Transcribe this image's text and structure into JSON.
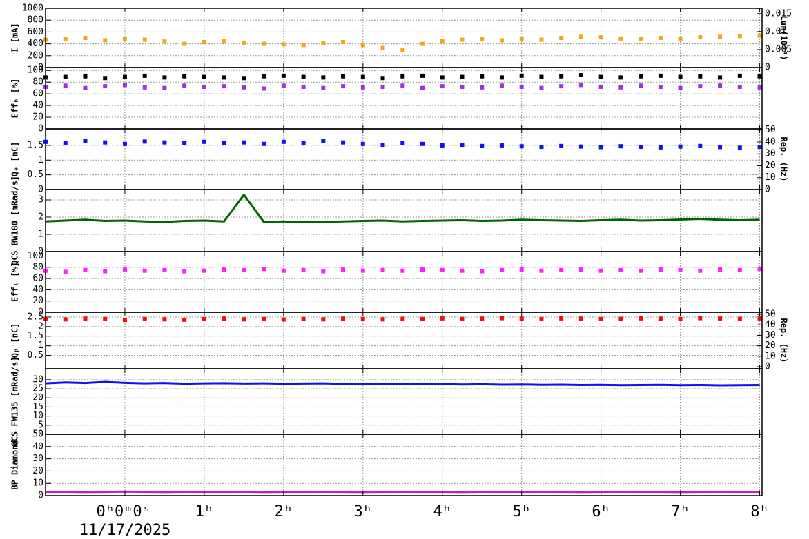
{
  "chart_data": [
    {
      "type": "scatter",
      "ylabel": "I [mA]",
      "ylim": [
        0,
        1000
      ],
      "yticks": [
        0,
        200,
        400,
        600,
        800,
        1000
      ],
      "y2label": "Lum(10³⁴)",
      "y2lim": [
        0,
        0.0165
      ],
      "y2ticks": [
        0,
        0.005,
        0.01,
        0.015
      ],
      "grid": true,
      "x": [
        -1,
        -0.75,
        -0.5,
        -0.25,
        0,
        0.25,
        0.5,
        0.75,
        1,
        1.25,
        1.5,
        1.75,
        2,
        2.25,
        2.5,
        2.75,
        3,
        3.25,
        3.5,
        3.75,
        4,
        4.25,
        4.5,
        4.75,
        5,
        5.25,
        5.5,
        5.75,
        6,
        6.25,
        6.5,
        6.75,
        7,
        7.25,
        7.5,
        7.75,
        8
      ],
      "series": [
        {
          "color": "#f0a818",
          "values": [
            470,
            480,
            500,
            460,
            480,
            470,
            440,
            400,
            430,
            450,
            420,
            400,
            390,
            380,
            410,
            430,
            380,
            330,
            290,
            400,
            450,
            470,
            480,
            460,
            480,
            470,
            500,
            520,
            510,
            490,
            480,
            500,
            490,
            510,
            520,
            530,
            540
          ]
        }
      ]
    },
    {
      "type": "scatter",
      "ylabel": "Effₕ [%]",
      "ylim": [
        0,
        105
      ],
      "yticks": [
        0,
        20,
        40,
        60,
        80,
        100
      ],
      "grid": true,
      "x": [
        -1,
        -0.75,
        -0.5,
        -0.25,
        0,
        0.25,
        0.5,
        0.75,
        1,
        1.25,
        1.5,
        1.75,
        2,
        2.25,
        2.5,
        2.75,
        3,
        3.25,
        3.5,
        3.75,
        4,
        4.25,
        4.5,
        4.75,
        5,
        5.25,
        5.5,
        5.75,
        6,
        6.25,
        6.5,
        6.75,
        7,
        7.25,
        7.5,
        7.75,
        8
      ],
      "series": [
        {
          "color": "#000000",
          "values": [
            88,
            89,
            90,
            87,
            89,
            91,
            88,
            90,
            89,
            88,
            87,
            90,
            91,
            89,
            88,
            90,
            89,
            87,
            90,
            91,
            88,
            89,
            90,
            88,
            91,
            89,
            90,
            92,
            89,
            88,
            90,
            91,
            89,
            90,
            88,
            91,
            90
          ]
        },
        {
          "color": "#a030e0",
          "values": [
            72,
            74,
            70,
            73,
            75,
            71,
            70,
            74,
            72,
            73,
            71,
            69,
            74,
            72,
            70,
            73,
            71,
            72,
            74,
            70,
            73,
            72,
            71,
            74,
            72,
            70,
            73,
            75,
            72,
            71,
            74,
            72,
            70,
            73,
            74,
            72,
            71
          ]
        }
      ]
    },
    {
      "type": "scatter",
      "ylabel": "Qₑ [nC]",
      "ylim": [
        0,
        2.06
      ],
      "yticks": [
        0,
        0.5,
        1,
        1.5
      ],
      "y2label": "Rep. (Hz)",
      "y2lim": [
        0,
        51
      ],
      "y2ticks": [
        0,
        10,
        20,
        30,
        40,
        50
      ],
      "grid": true,
      "x": [
        -1,
        -0.75,
        -0.5,
        -0.25,
        0,
        0.25,
        0.5,
        0.75,
        1,
        1.25,
        1.5,
        1.75,
        2,
        2.25,
        2.5,
        2.75,
        3,
        3.25,
        3.5,
        3.75,
        4,
        4.25,
        4.5,
        4.75,
        5,
        5.25,
        5.5,
        5.75,
        6,
        6.25,
        6.5,
        6.75,
        7,
        7.25,
        7.5,
        7.75,
        8
      ],
      "series": [
        {
          "color": "#1010f0",
          "values": [
            1.62,
            1.58,
            1.65,
            1.6,
            1.55,
            1.63,
            1.6,
            1.58,
            1.62,
            1.57,
            1.6,
            1.55,
            1.62,
            1.58,
            1.64,
            1.6,
            1.55,
            1.52,
            1.58,
            1.55,
            1.5,
            1.52,
            1.48,
            1.5,
            1.47,
            1.45,
            1.48,
            1.46,
            1.44,
            1.47,
            1.45,
            1.43,
            1.46,
            1.48,
            1.44,
            1.42,
            1.45
          ]
        }
      ]
    },
    {
      "type": "line",
      "ylabel": "QCS BW180 [mRad/s]",
      "ylim": [
        0,
        3.6
      ],
      "yticks": [
        0,
        1,
        2,
        3
      ],
      "grid": true,
      "x": [
        -1,
        -0.75,
        -0.5,
        -0.25,
        0,
        0.25,
        0.5,
        0.75,
        1,
        1.25,
        1.5,
        1.75,
        2,
        2.25,
        2.5,
        2.75,
        3,
        3.25,
        3.5,
        3.75,
        4,
        4.25,
        4.5,
        4.75,
        5,
        5.25,
        5.5,
        5.75,
        6,
        6.25,
        6.5,
        6.75,
        7,
        7.25,
        7.5,
        7.75,
        8
      ],
      "series": [
        {
          "color": "#006400",
          "values": [
            1.75,
            1.8,
            1.85,
            1.78,
            1.8,
            1.75,
            1.72,
            1.78,
            1.8,
            1.75,
            3.3,
            1.72,
            1.75,
            1.7,
            1.72,
            1.75,
            1.78,
            1.8,
            1.75,
            1.78,
            1.8,
            1.82,
            1.78,
            1.8,
            1.85,
            1.82,
            1.8,
            1.78,
            1.82,
            1.85,
            1.8,
            1.82,
            1.86,
            1.9,
            1.85,
            1.82,
            1.85
          ]
        }
      ]
    },
    {
      "type": "scatter",
      "ylabel": "Effₗ [%]",
      "ylim": [
        0,
        108
      ],
      "yticks": [
        0,
        20,
        40,
        60,
        80,
        100
      ],
      "grid": true,
      "x": [
        -1,
        -0.75,
        -0.5,
        -0.25,
        0,
        0.25,
        0.5,
        0.75,
        1,
        1.25,
        1.5,
        1.75,
        2,
        2.25,
        2.5,
        2.75,
        3,
        3.25,
        3.5,
        3.75,
        4,
        4.25,
        4.5,
        4.75,
        5,
        5.25,
        5.5,
        5.75,
        6,
        6.25,
        6.5,
        6.75,
        7,
        7.25,
        7.5,
        7.75,
        8
      ],
      "series": [
        {
          "color": "#ff20ff",
          "values": [
            74,
            72,
            75,
            73,
            76,
            74,
            75,
            73,
            74,
            76,
            75,
            77,
            74,
            75,
            73,
            76,
            74,
            75,
            74,
            76,
            75,
            74,
            73,
            75,
            76,
            74,
            75,
            76,
            74,
            75,
            74,
            76,
            75,
            74,
            76,
            75,
            77
          ]
        }
      ]
    },
    {
      "type": "scatter",
      "ylabel": "Qₚ [nC]",
      "ylim": [
        -0.2,
        2.75
      ],
      "yticks": [
        0.5,
        1,
        1.5,
        2,
        2.5
      ],
      "y2label": "Rep. (Hz)",
      "y2lim": [
        -2,
        52
      ],
      "y2ticks": [
        0,
        10,
        20,
        30,
        40,
        50
      ],
      "grid": true,
      "x": [
        -1,
        -0.75,
        -0.5,
        -0.25,
        0,
        0.25,
        0.5,
        0.75,
        1,
        1.25,
        1.5,
        1.75,
        2,
        2.25,
        2.5,
        2.75,
        3,
        3.25,
        3.5,
        3.75,
        4,
        4.25,
        4.5,
        4.75,
        5,
        5.25,
        5.5,
        5.75,
        6,
        6.25,
        6.5,
        6.75,
        7,
        7.25,
        7.5,
        7.75,
        8
      ],
      "series": [
        {
          "color": "#ee1010",
          "values": [
            2.4,
            2.38,
            2.42,
            2.4,
            2.35,
            2.4,
            2.38,
            2.36,
            2.4,
            2.42,
            2.38,
            2.4,
            2.37,
            2.4,
            2.38,
            2.42,
            2.4,
            2.38,
            2.41,
            2.4,
            2.43,
            2.4,
            2.42,
            2.44,
            2.42,
            2.4,
            2.43,
            2.42,
            2.4,
            2.41,
            2.43,
            2.42,
            2.4,
            2.44,
            2.42,
            2.41,
            2.43
          ]
        }
      ]
    },
    {
      "type": "line",
      "ylabel": "QCS FW135 [mRad/s]",
      "ylim": [
        0,
        36
      ],
      "yticks": [
        0,
        5,
        10,
        15,
        20,
        25,
        30
      ],
      "grid": true,
      "x": [
        -1,
        -0.75,
        -0.5,
        -0.25,
        0,
        0.25,
        0.5,
        0.75,
        1,
        1.25,
        1.5,
        1.75,
        2,
        2.25,
        2.5,
        2.75,
        3,
        3.25,
        3.5,
        3.75,
        4,
        4.25,
        4.5,
        4.75,
        5,
        5.25,
        5.5,
        5.75,
        6,
        6.25,
        6.5,
        6.75,
        7,
        7.25,
        7.5,
        7.75,
        8
      ],
      "series": [
        {
          "color": "#1010f0",
          "values": [
            28,
            28.5,
            28.2,
            28.8,
            28.3,
            28,
            28.2,
            27.8,
            28,
            28.1,
            27.9,
            28,
            27.8,
            27.9,
            28,
            27.7,
            27.8,
            27.6,
            27.8,
            27.5,
            27.6,
            27.4,
            27.5,
            27.3,
            27.4,
            27.2,
            27.3,
            27.1,
            27.2,
            27,
            27.1,
            27.2,
            27,
            27.1,
            26.9,
            27,
            27.1
          ]
        }
      ]
    },
    {
      "type": "line",
      "ylabel": "BP Diamond",
      "ylim": [
        0,
        50
      ],
      "yticks": [
        0,
        10,
        20,
        30,
        40,
        50
      ],
      "grid": true,
      "x": [
        -1,
        -0.75,
        -0.5,
        -0.25,
        0,
        0.25,
        0.5,
        0.75,
        1,
        1.25,
        1.5,
        1.75,
        2,
        2.25,
        2.5,
        2.75,
        3,
        3.25,
        3.5,
        3.75,
        4,
        4.25,
        4.5,
        4.75,
        5,
        5.25,
        5.5,
        5.75,
        6,
        6.25,
        6.5,
        6.75,
        7,
        7.25,
        7.5,
        7.75,
        8
      ],
      "series": [
        {
          "color": "#c020c0",
          "values": [
            3,
            3.1,
            2.9,
            3,
            3.2,
            3,
            2.9,
            3.1,
            3,
            3,
            3.1,
            2.9,
            3,
            3,
            3.1,
            3,
            2.9,
            3,
            3.1,
            3,
            3,
            2.9,
            3.1,
            3,
            3,
            3.1,
            3,
            2.9,
            3,
            3.1,
            3,
            3,
            2.9,
            3,
            3.1,
            3,
            3
          ]
        }
      ],
      "xlim": [
        -1,
        8.03
      ],
      "xticks": [
        {
          "value": 0,
          "label": "0ʰ0ᵐ0ˢ"
        },
        {
          "value": 1,
          "label": "1ʰ"
        },
        {
          "value": 2,
          "label": "2ʰ"
        },
        {
          "value": 3,
          "label": "3ʰ"
        },
        {
          "value": 4,
          "label": "4ʰ"
        },
        {
          "value": 5,
          "label": "5ʰ"
        },
        {
          "value": 6,
          "label": "6ʰ"
        },
        {
          "value": 7,
          "label": "7ʰ"
        },
        {
          "value": 8,
          "label": "8ʰ"
        }
      ],
      "date": "11/17/2025"
    }
  ]
}
